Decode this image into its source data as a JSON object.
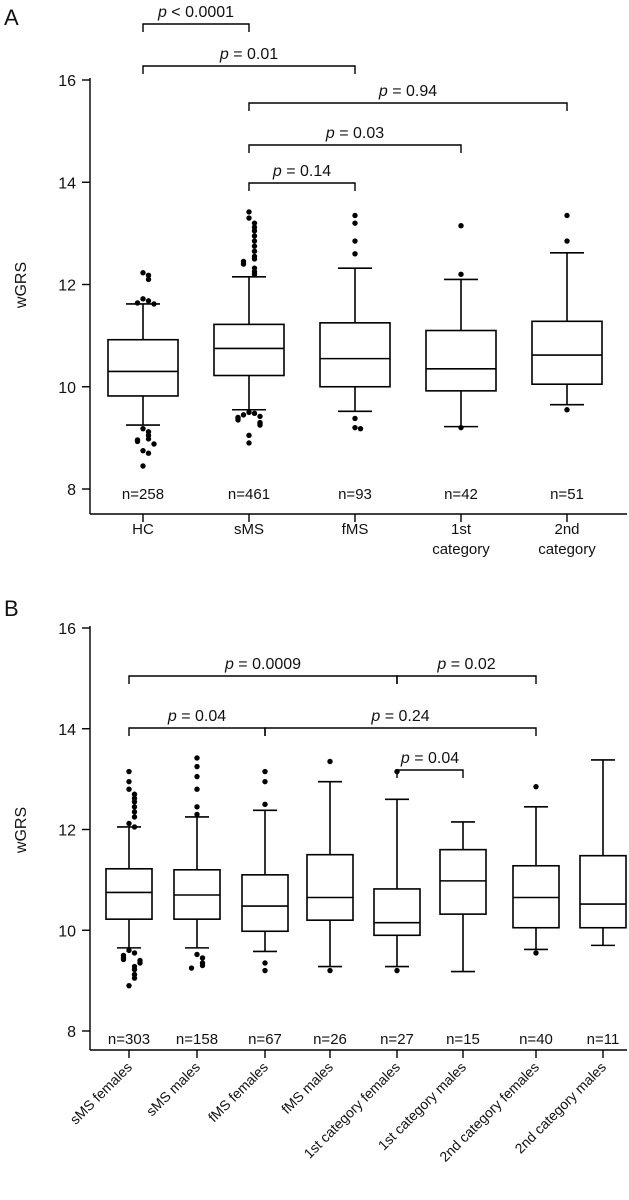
{
  "chart_data": [
    {
      "panel_label": "A",
      "type": "box",
      "ylabel": "wGRS",
      "ylim": [
        8,
        16
      ],
      "yticks": [
        8,
        10,
        12,
        14,
        16
      ],
      "groups": [
        {
          "label": [
            "HC"
          ],
          "n_label": "n=258",
          "q1": 9.82,
          "median": 10.3,
          "q3": 10.92,
          "whisker_low": 9.25,
          "whisker_high": 11.62,
          "outliers": [
            12.23,
            12.18,
            12.1,
            11.72,
            11.68,
            11.64,
            11.62,
            9.18,
            9.12,
            9.05,
            8.98,
            8.96,
            8.93,
            8.88,
            8.75,
            8.7,
            8.45
          ]
        },
        {
          "label": [
            "sMS"
          ],
          "n_label": "n=461",
          "q1": 10.22,
          "median": 10.75,
          "q3": 11.22,
          "whisker_low": 9.55,
          "whisker_high": 12.15,
          "outliers": [
            13.42,
            13.3,
            13.2,
            13.12,
            13.05,
            12.95,
            12.85,
            12.75,
            12.65,
            12.55,
            12.5,
            12.45,
            12.4,
            12.32,
            12.25,
            12.2,
            9.5,
            9.48,
            9.45,
            9.42,
            9.4,
            9.38,
            9.35,
            9.3,
            9.28,
            9.25,
            9.05,
            8.9
          ]
        },
        {
          "label": [
            "fMS"
          ],
          "n_label": "n=93",
          "q1": 10.0,
          "median": 10.55,
          "q3": 11.25,
          "whisker_low": 9.52,
          "whisker_high": 12.32,
          "outliers": [
            13.35,
            13.2,
            12.85,
            12.6,
            9.38,
            9.2,
            9.18
          ]
        },
        {
          "label": [
            "1st",
            "category"
          ],
          "n_label": "n=42",
          "q1": 9.92,
          "median": 10.35,
          "q3": 11.1,
          "whisker_low": 9.22,
          "whisker_high": 12.1,
          "outliers": [
            13.15,
            12.2,
            9.2
          ]
        },
        {
          "label": [
            "2nd",
            "category"
          ],
          "n_label": "n=51",
          "q1": 10.05,
          "median": 10.62,
          "q3": 11.28,
          "whisker_low": 9.65,
          "whisker_high": 12.62,
          "outliers": [
            13.35,
            12.85,
            9.55
          ]
        }
      ],
      "comparisons": [
        {
          "from": 0,
          "to": 1,
          "text": "p < 0.0001",
          "p_prefix": "p",
          "p_rest": " < 0.0001"
        },
        {
          "from": 0,
          "to": 2,
          "text": "p = 0.01",
          "p_prefix": "p",
          "p_rest": " = 0.01"
        },
        {
          "from": 1,
          "to": 4,
          "text": "p = 0.94",
          "p_prefix": "p",
          "p_rest": " = 0.94"
        },
        {
          "from": 1,
          "to": 3,
          "text": "p = 0.03",
          "p_prefix": "p",
          "p_rest": " = 0.03"
        },
        {
          "from": 1,
          "to": 2,
          "text": "p = 0.14",
          "p_prefix": "p",
          "p_rest": " = 0.14"
        }
      ]
    },
    {
      "panel_label": "B",
      "type": "box",
      "ylabel": "wGRS",
      "ylim": [
        8,
        16
      ],
      "yticks": [
        8,
        10,
        12,
        14,
        16
      ],
      "groups": [
        {
          "label": [
            "sMS females"
          ],
          "n_label": "n=303",
          "q1": 10.22,
          "median": 10.75,
          "q3": 11.22,
          "whisker_low": 9.65,
          "whisker_high": 12.05,
          "outliers": [
            13.15,
            12.95,
            12.8,
            12.7,
            12.62,
            12.55,
            12.45,
            12.35,
            12.25,
            12.12,
            12.05,
            9.6,
            9.55,
            9.5,
            9.45,
            9.42,
            9.4,
            9.35,
            9.28,
            9.22,
            9.12,
            9.05,
            8.9
          ]
        },
        {
          "label": [
            "sMS males"
          ],
          "n_label": "n=158",
          "q1": 10.22,
          "median": 10.7,
          "q3": 11.2,
          "whisker_low": 9.65,
          "whisker_high": 12.25,
          "outliers": [
            13.42,
            13.25,
            13.05,
            12.8,
            12.45,
            12.3,
            9.52,
            9.45,
            9.35,
            9.3,
            9.25
          ]
        },
        {
          "label": [
            "fMS females"
          ],
          "n_label": "n=67",
          "q1": 9.98,
          "median": 10.48,
          "q3": 11.1,
          "whisker_low": 9.58,
          "whisker_high": 12.38,
          "outliers": [
            13.15,
            12.95,
            12.5,
            9.35,
            9.2
          ]
        },
        {
          "label": [
            "fMS males"
          ],
          "n_label": "n=26",
          "q1": 10.2,
          "median": 10.65,
          "q3": 11.5,
          "whisker_low": 9.28,
          "whisker_high": 12.95,
          "outliers": [
            13.35,
            9.2
          ]
        },
        {
          "label": [
            "1st category females"
          ],
          "n_label": "n=27",
          "q1": 9.9,
          "median": 10.15,
          "q3": 10.82,
          "whisker_low": 9.28,
          "whisker_high": 12.6,
          "outliers": [
            13.15,
            9.2
          ]
        },
        {
          "label": [
            "1st category males"
          ],
          "n_label": "n=15",
          "q1": 10.32,
          "median": 10.98,
          "q3": 11.6,
          "whisker_low": 9.18,
          "whisker_high": 12.15,
          "outliers": []
        },
        {
          "label": [
            "2nd category females"
          ],
          "n_label": "n=40",
          "q1": 10.05,
          "median": 10.65,
          "q3": 11.28,
          "whisker_low": 9.62,
          "whisker_high": 12.45,
          "outliers": [
            12.85,
            9.55
          ]
        },
        {
          "label": [
            "2nd category males"
          ],
          "n_label": "n=11",
          "q1": 10.05,
          "median": 10.52,
          "q3": 11.48,
          "whisker_low": 9.7,
          "whisker_high": 13.38,
          "outliers": []
        }
      ],
      "comparisons": [
        {
          "from": 0,
          "to": 4,
          "text": "p = 0.0009",
          "p_prefix": "p",
          "p_rest": " = 0.0009"
        },
        {
          "from": 4,
          "to": 6,
          "text": "p = 0.02",
          "p_prefix": "p",
          "p_rest": " = 0.02"
        },
        {
          "from": 0,
          "to": 2,
          "text": "p = 0.04",
          "p_prefix": "p",
          "p_rest": " = 0.04"
        },
        {
          "from": 2,
          "to": 6,
          "text": "p = 0.24",
          "p_prefix": "p",
          "p_rest": " = 0.24"
        },
        {
          "from": 4,
          "to": 5,
          "text": "p = 0.04",
          "p_prefix": "p",
          "p_rest": " = 0.04"
        }
      ]
    }
  ]
}
